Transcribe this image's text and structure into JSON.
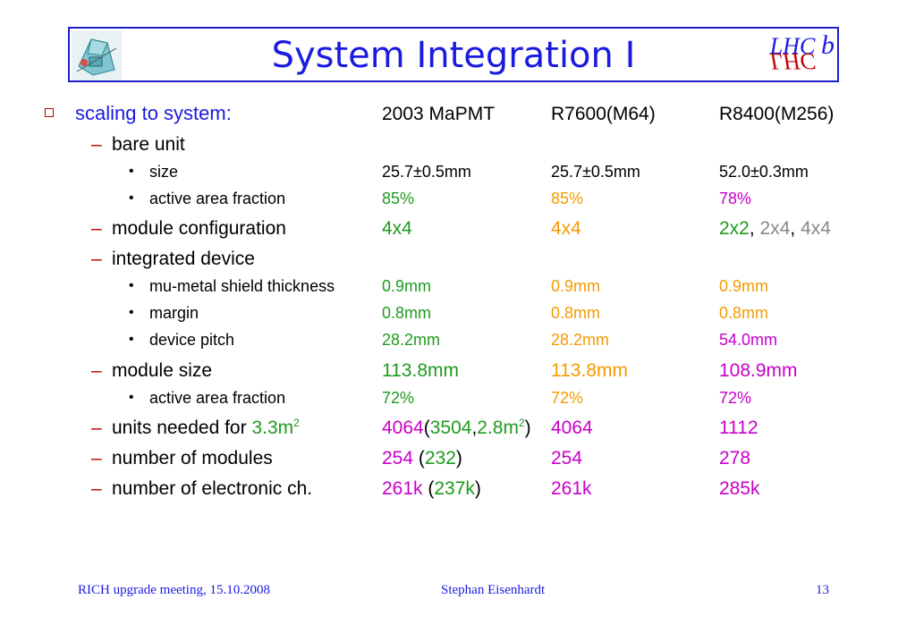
{
  "title": "System Integration I",
  "logo_right_text": "LHCb",
  "header_row": {
    "label": "scaling to system:",
    "col1": "2003 MaPMT",
    "col2": "R7600(M64)",
    "col3": "R8400(M256)"
  },
  "rows": {
    "bare_unit": {
      "label": "bare unit"
    },
    "size": {
      "label": "size",
      "c1": "25.7±0.5mm",
      "c2": "25.7±0.5mm",
      "c3": "52.0±0.3mm"
    },
    "active_area_1": {
      "label": "active area fraction",
      "c1": "85%",
      "c2": "85%",
      "c3": "78%"
    },
    "module_config": {
      "label": "module configuration",
      "c1": "4x4",
      "c2": "4x4",
      "c3a": "2x2",
      "sep1": ", ",
      "c3b": "2x4",
      "sep2": ", ",
      "c3c": "4x4"
    },
    "integrated_device": {
      "label": "integrated device"
    },
    "mu_metal": {
      "label": "mu-metal shield thickness",
      "c1": "0.9mm",
      "c2": "0.9mm",
      "c3": "0.9mm"
    },
    "margin": {
      "label": "margin",
      "c1": "0.8mm",
      "c2": "0.8mm",
      "c3": "0.8mm"
    },
    "device_pitch": {
      "label": "device pitch",
      "c1": "28.2mm",
      "c2": "28.2mm",
      "c3": "54.0mm"
    },
    "module_size": {
      "label": "module size",
      "c1": "113.8mm",
      "c2": "113.8mm",
      "c3": "108.9mm"
    },
    "active_area_2": {
      "label": "active area fraction",
      "c1": "72%",
      "c2": "72%",
      "c3": "72%"
    },
    "units_needed": {
      "label": "units needed for ",
      "label_val": "3.3m",
      "label_sup": "2",
      "c1a": "4064",
      "c1b": "(",
      "c1c": "3504",
      "c1d": ",",
      "c1e": "2.8m",
      "c1sup": "2",
      "c1f": ")",
      "c2": "4064",
      "c3": "1112"
    },
    "num_modules": {
      "label": "number of modules",
      "c1a": "254",
      "c1b": " (",
      "c1c": "232",
      "c1d": ")",
      "c2": "254",
      "c3": "278"
    },
    "num_channels": {
      "label": "number of electronic ch.",
      "c1a": "261k",
      "c1b": " (",
      "c1c": "237k",
      "c1d": ")",
      "c2": "261k",
      "c3": "285k"
    }
  },
  "footer": {
    "left": "RICH upgrade meeting, 15.10.2008",
    "center": "Stephan Eisenhardt",
    "page": "13"
  },
  "colors": {
    "title_blue": "#1a1ae0",
    "bullet_red": "#c00000",
    "green": "#1e9b1e",
    "orange": "#f59a00",
    "magenta": "#c800c8",
    "gray": "#888888"
  }
}
